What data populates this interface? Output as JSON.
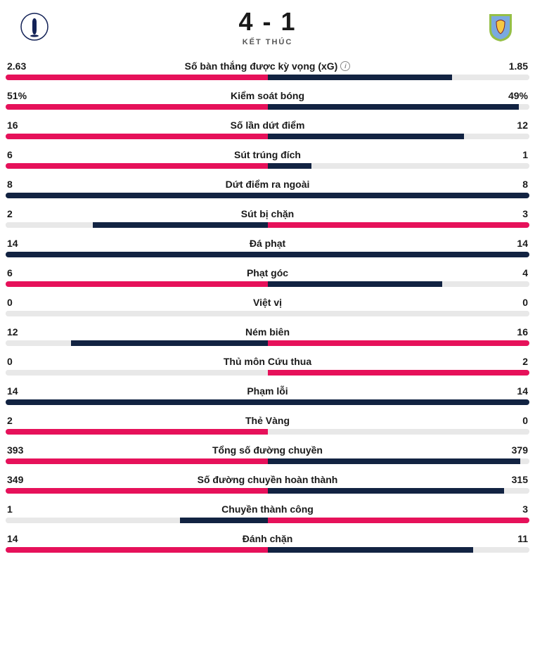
{
  "colors": {
    "home_win": "#e6115a",
    "away_win": "#e6115a",
    "home_lose": "#122342",
    "away_lose": "#122342",
    "draw_home": "#122342",
    "draw_away": "#122342",
    "track": "#e8e8e8"
  },
  "header": {
    "score_home": "4",
    "score_sep": " - ",
    "score_away": "1",
    "status": "KẾT THÚC",
    "home_crest_bg": "#ffffff",
    "home_crest_fg": "#132257",
    "away_crest_bg": "#7aa9e0",
    "away_crest_border": "#95bf47",
    "away_crest_accent": "#f6c844"
  },
  "stats": [
    {
      "name": "Số bàn thắng được kỳ vọng (xG)",
      "info": true,
      "home": "2.63",
      "away": "1.85",
      "home_num": 2.63,
      "away_num": 1.85,
      "max": 2.63
    },
    {
      "name": "Kiểm soát bóng",
      "home": "51%",
      "away": "49%",
      "home_num": 51,
      "away_num": 49,
      "max": 51
    },
    {
      "name": "Số lần dứt điểm",
      "home": "16",
      "away": "12",
      "home_num": 16,
      "away_num": 12,
      "max": 16
    },
    {
      "name": "Sút trúng đích",
      "home": "6",
      "away": "1",
      "home_num": 6,
      "away_num": 1,
      "max": 6
    },
    {
      "name": "Dứt điểm ra ngoài",
      "home": "8",
      "away": "8",
      "home_num": 8,
      "away_num": 8,
      "max": 8
    },
    {
      "name": "Sút bị chặn",
      "home": "2",
      "away": "3",
      "home_num": 2,
      "away_num": 3,
      "max": 3
    },
    {
      "name": "Đá phạt",
      "home": "14",
      "away": "14",
      "home_num": 14,
      "away_num": 14,
      "max": 14
    },
    {
      "name": "Phạt góc",
      "home": "6",
      "away": "4",
      "home_num": 6,
      "away_num": 4,
      "max": 6
    },
    {
      "name": "Việt vị",
      "home": "0",
      "away": "0",
      "home_num": 0,
      "away_num": 0,
      "max": 1
    },
    {
      "name": "Ném biên",
      "home": "12",
      "away": "16",
      "home_num": 12,
      "away_num": 16,
      "max": 16
    },
    {
      "name": "Thủ môn Cứu thua",
      "home": "0",
      "away": "2",
      "home_num": 0,
      "away_num": 2,
      "max": 2
    },
    {
      "name": "Phạm lỗi",
      "home": "14",
      "away": "14",
      "home_num": 14,
      "away_num": 14,
      "max": 14
    },
    {
      "name": "Thẻ Vàng",
      "home": "2",
      "away": "0",
      "home_num": 2,
      "away_num": 0,
      "max": 2
    },
    {
      "name": "Tổng số đường chuyền",
      "home": "393",
      "away": "379",
      "home_num": 393,
      "away_num": 379,
      "max": 393
    },
    {
      "name": "Số đường chuyền hoàn thành",
      "home": "349",
      "away": "315",
      "home_num": 349,
      "away_num": 315,
      "max": 349
    },
    {
      "name": "Chuyền thành công",
      "home": "1",
      "away": "3",
      "home_num": 1,
      "away_num": 3,
      "max": 3
    },
    {
      "name": "Đánh chặn",
      "home": "14",
      "away": "11",
      "home_num": 14,
      "away_num": 11,
      "max": 14
    }
  ]
}
